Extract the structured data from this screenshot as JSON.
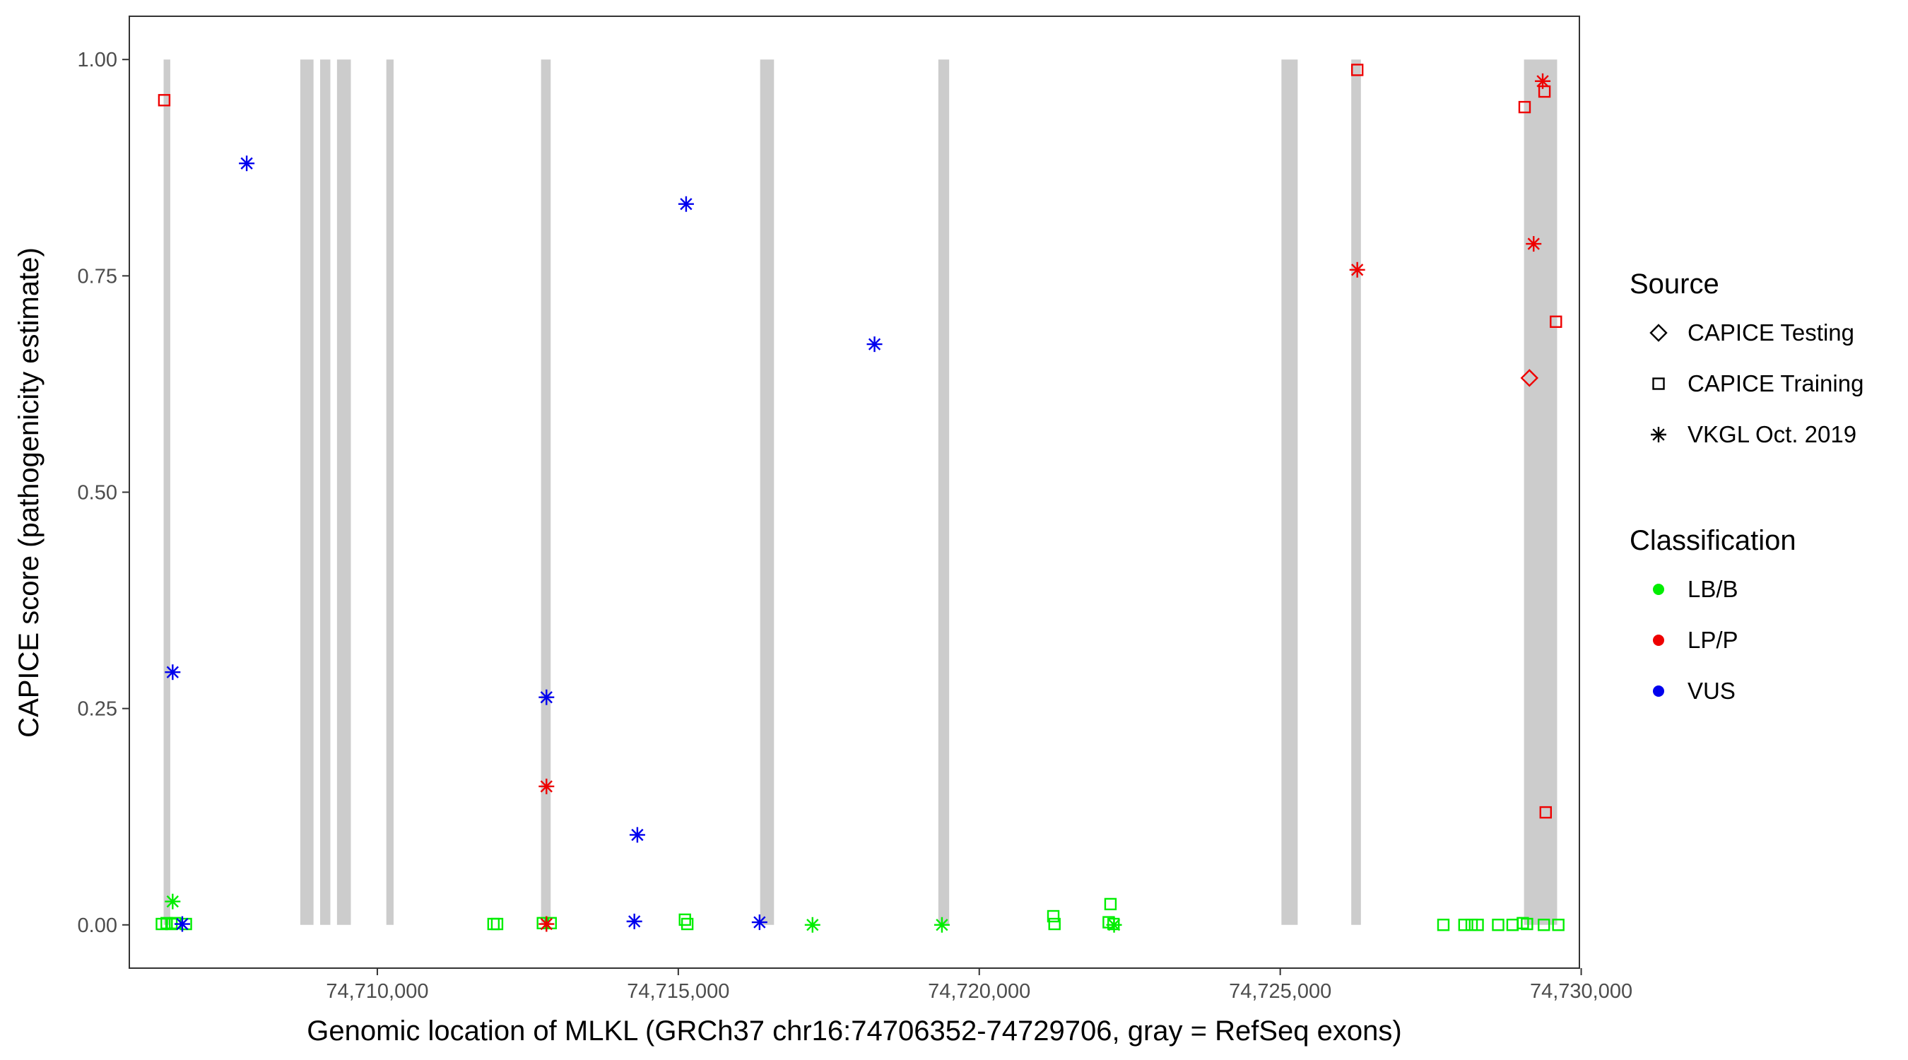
{
  "chart_data": {
    "type": "scatter",
    "xlabel": "Genomic location of MLKL (GRCh37 chr16:74706352-74729706, gray = RefSeq exons)",
    "ylabel": "CAPICE score (pathogenicity estimate)",
    "xlim": [
      74705880,
      74729970
    ],
    "ylim": [
      -0.05,
      1.05
    ],
    "x_ticks": [
      74710000,
      74715000,
      74720000,
      74725000,
      74730000
    ],
    "x_tick_labels": [
      "74,710,000",
      "74,715,000",
      "74,720,000",
      "74,725,000",
      "74,730,000"
    ],
    "y_ticks": [
      0,
      0.25,
      0.5,
      0.75,
      1
    ],
    "y_tick_labels": [
      "0.00",
      "0.25",
      "0.50",
      "0.75",
      "1.00"
    ],
    "grid": false,
    "exons": [
      [
        74706450,
        74706560
      ],
      [
        74708720,
        74708940
      ],
      [
        74709050,
        74709220
      ],
      [
        74709330,
        74709560
      ],
      [
        74710150,
        74710270
      ],
      [
        74712720,
        74712880
      ],
      [
        74716360,
        74716590
      ],
      [
        74719320,
        74719500
      ],
      [
        74725020,
        74725290
      ],
      [
        74726180,
        74726340
      ],
      [
        74729050,
        74729600
      ]
    ],
    "legend": {
      "placement": "right",
      "source": {
        "title": "Source",
        "items": [
          {
            "label": "CAPICE Testing",
            "shape": "diamond"
          },
          {
            "label": "CAPICE Training",
            "shape": "square"
          },
          {
            "label": "VKGL Oct. 2019",
            "shape": "asterisk"
          }
        ]
      },
      "classification": {
        "title": "Classification",
        "items": [
          {
            "label": "LB/B",
            "color": "#00ee00"
          },
          {
            "label": "LP/P",
            "color": "#ee0000"
          },
          {
            "label": "VUS",
            "color": "#0000ee"
          }
        ]
      }
    },
    "points": [
      {
        "x": 74706460,
        "y": 0.953,
        "source": "CAPICE Training",
        "class": "LP/P"
      },
      {
        "x": 74707830,
        "y": 0.88,
        "source": "VKGL Oct. 2019",
        "class": "VUS"
      },
      {
        "x": 74706600,
        "y": 0.292,
        "source": "VKGL Oct. 2019",
        "class": "VUS"
      },
      {
        "x": 74706600,
        "y": 0.027,
        "source": "VKGL Oct. 2019",
        "class": "LB/B"
      },
      {
        "x": 74706420,
        "y": 0.001,
        "source": "CAPICE Training",
        "class": "LB/B"
      },
      {
        "x": 74706500,
        "y": 0.002,
        "source": "CAPICE Training",
        "class": "LB/B"
      },
      {
        "x": 74706580,
        "y": 0.001,
        "source": "CAPICE Training",
        "class": "LB/B"
      },
      {
        "x": 74706640,
        "y": 0.002,
        "source": "CAPICE Training",
        "class": "LB/B"
      },
      {
        "x": 74706820,
        "y": 0.001,
        "source": "CAPICE Training",
        "class": "LB/B"
      },
      {
        "x": 74706760,
        "y": 0.001,
        "source": "VKGL Oct. 2019",
        "class": "VUS"
      },
      {
        "x": 74711930,
        "y": 0.001,
        "source": "CAPICE Training",
        "class": "LB/B"
      },
      {
        "x": 74711990,
        "y": 0.001,
        "source": "CAPICE Training",
        "class": "LB/B"
      },
      {
        "x": 74712750,
        "y": 0.002,
        "source": "CAPICE Training",
        "class": "LB/B"
      },
      {
        "x": 74712880,
        "y": 0.002,
        "source": "CAPICE Training",
        "class": "LB/B"
      },
      {
        "x": 74712810,
        "y": 0.263,
        "source": "VKGL Oct. 2019",
        "class": "VUS"
      },
      {
        "x": 74712810,
        "y": 0.16,
        "source": "VKGL Oct. 2019",
        "class": "LP/P"
      },
      {
        "x": 74712810,
        "y": 0.001,
        "source": "VKGL Oct. 2019",
        "class": "LP/P"
      },
      {
        "x": 74714320,
        "y": 0.104,
        "source": "VKGL Oct. 2019",
        "class": "VUS"
      },
      {
        "x": 74714270,
        "y": 0.004,
        "source": "VKGL Oct. 2019",
        "class": "VUS"
      },
      {
        "x": 74715130,
        "y": 0.833,
        "source": "VKGL Oct. 2019",
        "class": "VUS"
      },
      {
        "x": 74715110,
        "y": 0.006,
        "source": "CAPICE Training",
        "class": "LB/B"
      },
      {
        "x": 74715150,
        "y": 0.001,
        "source": "CAPICE Training",
        "class": "LB/B"
      },
      {
        "x": 74716350,
        "y": 0.003,
        "source": "VKGL Oct. 2019",
        "class": "VUS"
      },
      {
        "x": 74717230,
        "y": 0.0,
        "source": "VKGL Oct. 2019",
        "class": "LB/B"
      },
      {
        "x": 74718260,
        "y": 0.671,
        "source": "VKGL Oct. 2019",
        "class": "VUS"
      },
      {
        "x": 74719380,
        "y": 0.0,
        "source": "VKGL Oct. 2019",
        "class": "LB/B"
      },
      {
        "x": 74721230,
        "y": 0.01,
        "source": "CAPICE Training",
        "class": "LB/B"
      },
      {
        "x": 74721250,
        "y": 0.001,
        "source": "CAPICE Training",
        "class": "LB/B"
      },
      {
        "x": 74722180,
        "y": 0.024,
        "source": "CAPICE Training",
        "class": "LB/B"
      },
      {
        "x": 74722150,
        "y": 0.003,
        "source": "CAPICE Training",
        "class": "LB/B"
      },
      {
        "x": 74722230,
        "y": 0.001,
        "source": "CAPICE Training",
        "class": "LB/B"
      },
      {
        "x": 74722240,
        "y": 0.0,
        "source": "VKGL Oct. 2019",
        "class": "LB/B"
      },
      {
        "x": 74726280,
        "y": 0.988,
        "source": "CAPICE Training",
        "class": "LP/P"
      },
      {
        "x": 74726280,
        "y": 0.757,
        "source": "VKGL Oct. 2019",
        "class": "LP/P"
      },
      {
        "x": 74727710,
        "y": 0.0,
        "source": "CAPICE Training",
        "class": "LB/B"
      },
      {
        "x": 74728060,
        "y": 0.0,
        "source": "CAPICE Training",
        "class": "LB/B"
      },
      {
        "x": 74728180,
        "y": 0.0,
        "source": "CAPICE Training",
        "class": "LB/B"
      },
      {
        "x": 74728280,
        "y": 0.0,
        "source": "CAPICE Training",
        "class": "LB/B"
      },
      {
        "x": 74728620,
        "y": 0.0,
        "source": "CAPICE Training",
        "class": "LB/B"
      },
      {
        "x": 74728860,
        "y": 0.0,
        "source": "CAPICE Training",
        "class": "LB/B"
      },
      {
        "x": 74729030,
        "y": 0.002,
        "source": "CAPICE Training",
        "class": "LB/B"
      },
      {
        "x": 74729100,
        "y": 0.001,
        "source": "CAPICE Training",
        "class": "LB/B"
      },
      {
        "x": 74729380,
        "y": 0.0,
        "source": "CAPICE Training",
        "class": "LB/B"
      },
      {
        "x": 74729620,
        "y": 0.0,
        "source": "CAPICE Training",
        "class": "LB/B"
      },
      {
        "x": 74729060,
        "y": 0.945,
        "source": "CAPICE Training",
        "class": "LP/P"
      },
      {
        "x": 74729390,
        "y": 0.963,
        "source": "CAPICE Training",
        "class": "LP/P"
      },
      {
        "x": 74729360,
        "y": 0.975,
        "source": "VKGL Oct. 2019",
        "class": "LP/P"
      },
      {
        "x": 74729210,
        "y": 0.787,
        "source": "VKGL Oct. 2019",
        "class": "LP/P"
      },
      {
        "x": 74729580,
        "y": 0.697,
        "source": "CAPICE Training",
        "class": "LP/P"
      },
      {
        "x": 74729140,
        "y": 0.632,
        "source": "CAPICE Testing",
        "class": "LP/P"
      },
      {
        "x": 74729410,
        "y": 0.13,
        "source": "CAPICE Training",
        "class": "LP/P"
      }
    ]
  }
}
